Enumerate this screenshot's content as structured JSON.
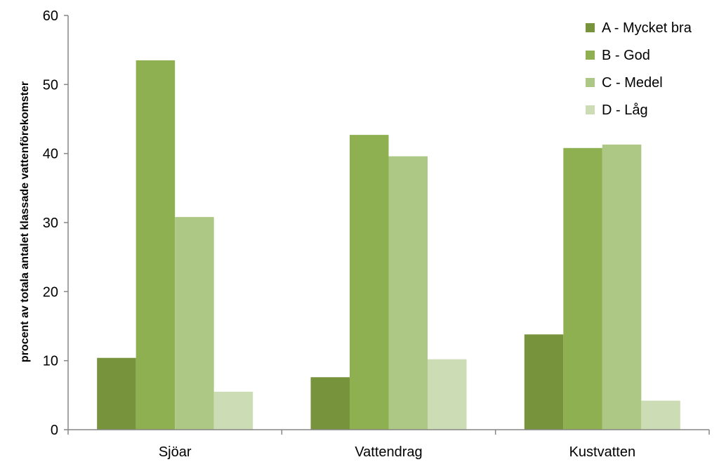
{
  "chart_data": {
    "type": "bar",
    "title": "",
    "xlabel": "",
    "ylabel": "procent av totala antalet klassade vattenförekomster",
    "ylim": [
      0,
      60
    ],
    "yticks": [
      0,
      10,
      20,
      30,
      40,
      50,
      60
    ],
    "categories": [
      "Sjöar",
      "Vattendrag",
      "Kustvatten"
    ],
    "series": [
      {
        "name": "A - Mycket bra",
        "color": "#77933c",
        "values": [
          10.4,
          7.6,
          13.8
        ]
      },
      {
        "name": "B - God",
        "color": "#8fb050",
        "values": [
          53.5,
          42.7,
          40.8
        ]
      },
      {
        "name": "C - Medel",
        "color": "#adc884",
        "values": [
          30.8,
          39.6,
          41.3
        ]
      },
      {
        "name": "D - Låg",
        "color": "#ccdcb4",
        "values": [
          5.5,
          10.2,
          4.2
        ]
      }
    ],
    "legend_position": "top-right",
    "grid": false
  }
}
